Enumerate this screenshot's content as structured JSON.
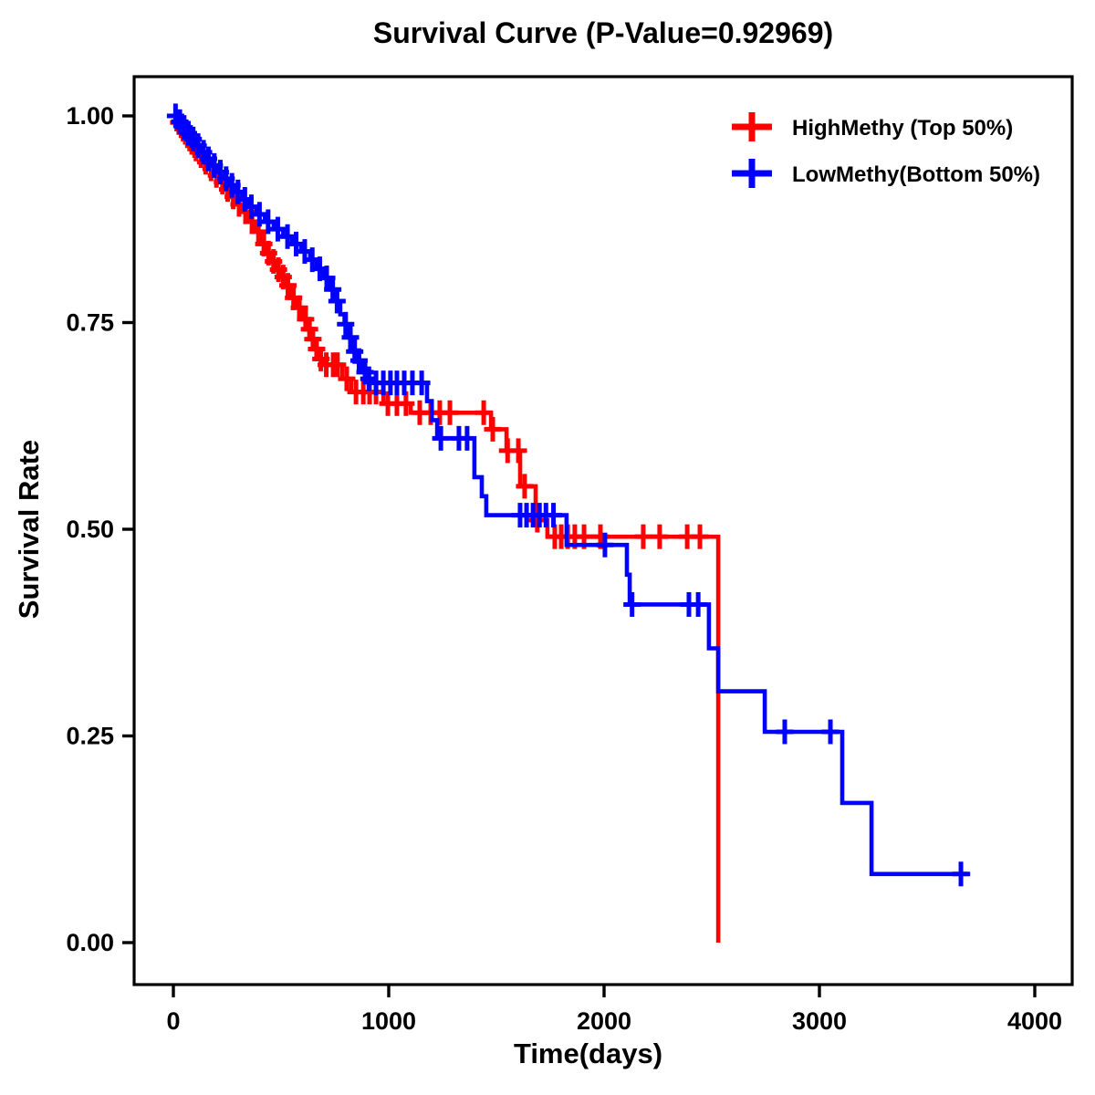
{
  "figure": {
    "title": "Survival Curve (P-Value=0.92969)"
  },
  "chart_data": {
    "type": "line",
    "subtype": "kaplan_meier_step_curve",
    "title": "Survival Curve (P-Value=0.92969)",
    "p_value": "0.92969",
    "xlabel": "Time(days)",
    "ylabel": "Survival Rate",
    "xlim": [
      0,
      4000
    ],
    "ylim": [
      0.0,
      1.0
    ],
    "grid": false,
    "legend_position": "top-right",
    "x_ticks": {
      "values": [
        0,
        1000,
        2000,
        3000,
        4000
      ],
      "labels": [
        "0",
        "1000",
        "2000",
        "3000",
        "4000"
      ]
    },
    "y_ticks": {
      "values": [
        1.0,
        0.75,
        0.5,
        0.25,
        0.0
      ],
      "labels": [
        "1.00",
        "0.75",
        "0.50",
        "0.25",
        "0.00"
      ]
    },
    "series": [
      {
        "name": "HighMethy (Top 50%)",
        "color": "#ff0000",
        "steps": [
          [
            0,
            1.0
          ],
          [
            18,
            0.992
          ],
          [
            36,
            0.984
          ],
          [
            55,
            0.976
          ],
          [
            75,
            0.968
          ],
          [
            95,
            0.96
          ],
          [
            118,
            0.952
          ],
          [
            140,
            0.944
          ],
          [
            165,
            0.936
          ],
          [
            190,
            0.928
          ],
          [
            215,
            0.92
          ],
          [
            240,
            0.911
          ],
          [
            265,
            0.902
          ],
          [
            292,
            0.893
          ],
          [
            320,
            0.884
          ],
          [
            350,
            0.872
          ],
          [
            380,
            0.86
          ],
          [
            411,
            0.845
          ],
          [
            430,
            0.834
          ],
          [
            452,
            0.824
          ],
          [
            475,
            0.814
          ],
          [
            500,
            0.805
          ],
          [
            520,
            0.795
          ],
          [
            542,
            0.78
          ],
          [
            572,
            0.768
          ],
          [
            598,
            0.754
          ],
          [
            620,
            0.742
          ],
          [
            640,
            0.73
          ],
          [
            658,
            0.718
          ],
          [
            678,
            0.706
          ],
          [
            695,
            0.699
          ],
          [
            784,
            0.682
          ],
          [
            826,
            0.666
          ],
          [
            975,
            0.652
          ],
          [
            1102,
            0.641
          ],
          [
            1475,
            0.621
          ],
          [
            1547,
            0.595
          ],
          [
            1610,
            0.552
          ],
          [
            1682,
            0.511
          ],
          [
            1737,
            0.491
          ],
          [
            2530,
            0.0
          ]
        ],
        "censor_times": [
          25,
          45,
          65,
          85,
          105,
          128,
          150,
          175,
          200,
          228,
          252,
          278,
          305,
          335,
          365,
          395,
          420,
          442,
          465,
          488,
          510,
          532,
          558,
          585,
          614,
          632,
          648,
          665,
          685,
          710,
          742,
          762,
          805,
          848,
          882,
          911,
          941,
          996,
          1038,
          1080,
          1144,
          1195,
          1237,
          1284,
          1441,
          1483,
          1552,
          1602,
          1631,
          1690,
          1771,
          1801,
          1831,
          1864,
          1907,
          1983,
          2182,
          2258,
          2386,
          2445
        ]
      },
      {
        "name": "LowMethy(Bottom 50%)",
        "color": "#0000ff",
        "steps": [
          [
            0,
            1.0
          ],
          [
            22,
            0.993
          ],
          [
            42,
            0.986
          ],
          [
            62,
            0.979
          ],
          [
            82,
            0.972
          ],
          [
            105,
            0.964
          ],
          [
            128,
            0.956
          ],
          [
            152,
            0.948
          ],
          [
            178,
            0.94
          ],
          [
            205,
            0.932
          ],
          [
            232,
            0.924
          ],
          [
            260,
            0.916
          ],
          [
            290,
            0.908
          ],
          [
            320,
            0.899
          ],
          [
            350,
            0.89
          ],
          [
            385,
            0.881
          ],
          [
            425,
            0.872
          ],
          [
            466,
            0.863
          ],
          [
            510,
            0.854
          ],
          [
            551,
            0.845
          ],
          [
            593,
            0.836
          ],
          [
            635,
            0.826
          ],
          [
            665,
            0.815
          ],
          [
            700,
            0.804
          ],
          [
            730,
            0.79
          ],
          [
            752,
            0.776
          ],
          [
            775,
            0.76
          ],
          [
            795,
            0.748
          ],
          [
            815,
            0.732
          ],
          [
            835,
            0.715
          ],
          [
            855,
            0.704
          ],
          [
            880,
            0.69
          ],
          [
            900,
            0.682
          ],
          [
            920,
            0.677
          ],
          [
            1178,
            0.655
          ],
          [
            1200,
            0.632
          ],
          [
            1225,
            0.61
          ],
          [
            1398,
            0.563
          ],
          [
            1432,
            0.54
          ],
          [
            1453,
            0.517
          ],
          [
            1826,
            0.481
          ],
          [
            2106,
            0.445
          ],
          [
            2119,
            0.409
          ],
          [
            2487,
            0.356
          ],
          [
            2530,
            0.304
          ],
          [
            2746,
            0.255
          ],
          [
            3106,
            0.169
          ],
          [
            3242,
            0.083
          ],
          [
            3700,
            0.083
          ]
        ],
        "censor_times": [
          10,
          30,
          50,
          70,
          92,
          115,
          140,
          163,
          190,
          218,
          245,
          272,
          300,
          332,
          362,
          400,
          440,
          485,
          530,
          570,
          610,
          645,
          680,
          712,
          740,
          760,
          800,
          822,
          842,
          862,
          890,
          908,
          941,
          975,
          1008,
          1038,
          1072,
          1110,
          1153,
          1242,
          1326,
          1364,
          1610,
          1640,
          1670,
          1700,
          1730,
          1765,
          2004,
          2130,
          2394,
          2437,
          2839,
          3051,
          3657
        ]
      }
    ]
  }
}
